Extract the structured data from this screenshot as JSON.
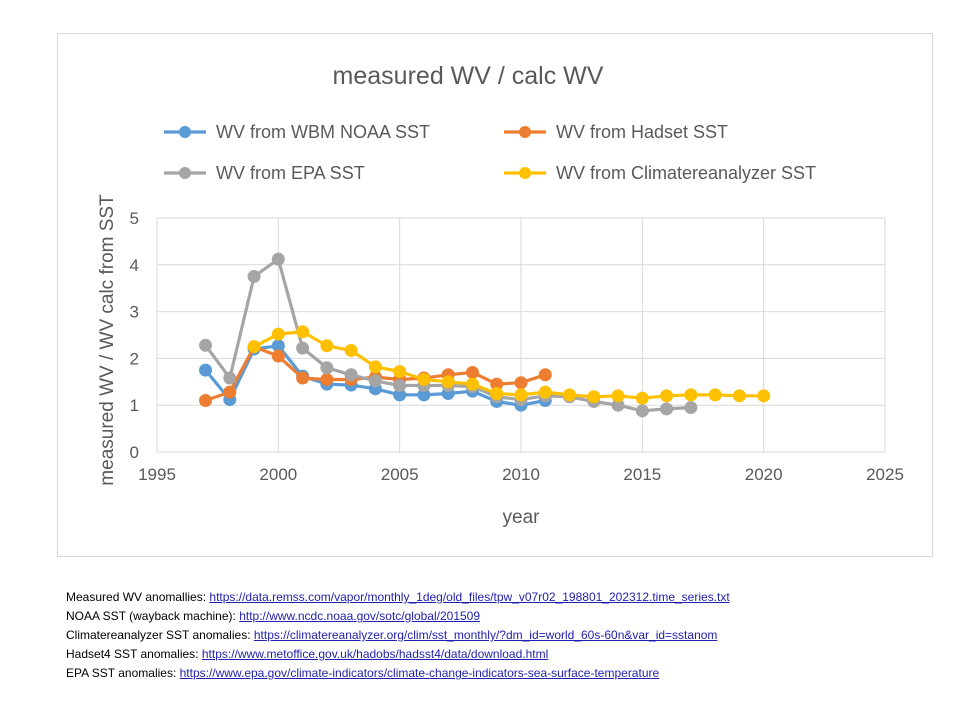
{
  "chart_data": {
    "type": "line",
    "title": "measured  WV / calc WV",
    "xlabel": "year",
    "ylabel": "measured WV / WV calc from SST",
    "xlim": [
      1995,
      2025
    ],
    "ylim": [
      0,
      5
    ],
    "xticks": [
      "1995",
      "2000",
      "2005",
      "2010",
      "2015",
      "2020",
      "2025"
    ],
    "yticks": [
      "0",
      "1",
      "2",
      "3",
      "4",
      "5"
    ],
    "grid": true,
    "legend_position": "top",
    "series": [
      {
        "name": "WV from WBM NOAA  SST",
        "color": "#5b9bd5",
        "x": [
          1997,
          1998,
          1999,
          2000,
          2001,
          2002,
          2003,
          2004,
          2005,
          2006,
          2007,
          2008,
          2009,
          2010,
          2011
        ],
        "y": [
          1.75,
          1.12,
          2.2,
          2.27,
          1.62,
          1.45,
          1.43,
          1.35,
          1.22,
          1.22,
          1.25,
          1.3,
          1.08,
          1.0,
          1.1
        ]
      },
      {
        "name": "WV from Hadset SST",
        "color": "#ed7d31",
        "x": [
          1997,
          1998,
          1999,
          2000,
          2001,
          2002,
          2003,
          2004,
          2005,
          2006,
          2007,
          2008,
          2009,
          2010,
          2011
        ],
        "y": [
          1.1,
          1.28,
          2.25,
          2.05,
          1.58,
          1.55,
          1.55,
          1.6,
          1.55,
          1.58,
          1.65,
          1.7,
          1.45,
          1.48,
          1.65
        ]
      },
      {
        "name": "WV from EPA SST",
        "color": "#a5a5a5",
        "x": [
          1997,
          1998,
          1999,
          2000,
          2001,
          2002,
          2003,
          2004,
          2005,
          2006,
          2007,
          2008,
          2009,
          2010,
          2011,
          2012,
          2013,
          2014,
          2015,
          2016,
          2017
        ],
        "y": [
          2.28,
          1.58,
          3.75,
          4.12,
          2.22,
          1.8,
          1.65,
          1.52,
          1.42,
          1.42,
          1.42,
          1.4,
          1.18,
          1.12,
          1.2,
          1.18,
          1.08,
          1.0,
          0.88,
          0.92,
          0.95
        ]
      },
      {
        "name": "WV from Climatereanalyzer SST",
        "color": "#ffc000",
        "x": [
          1999,
          2000,
          2001,
          2002,
          2003,
          2004,
          2005,
          2006,
          2007,
          2008,
          2009,
          2010,
          2011,
          2012,
          2013,
          2014,
          2015,
          2016,
          2017,
          2018,
          2019,
          2020
        ],
        "y": [
          2.25,
          2.52,
          2.57,
          2.27,
          2.17,
          1.82,
          1.72,
          1.55,
          1.5,
          1.45,
          1.25,
          1.22,
          1.28,
          1.22,
          1.18,
          1.2,
          1.15,
          1.2,
          1.22,
          1.22,
          1.2,
          1.2
        ]
      }
    ]
  },
  "sources": [
    {
      "label": "Measured WV anomallies: ",
      "link": "https://data.remss.com/vapor/monthly_1deg/old_files/tpw_v07r02_198801_202312.time_series.txt"
    },
    {
      "label": "NOAA SST (wayback machine): ",
      "link": "http://www.ncdc.noaa.gov/sotc/global/201509"
    },
    {
      "label": "Climatereanalyzer SST anomalies: ",
      "link": "https://climatereanalyzer.org/clim/sst_monthly/?dm_id=world_60s-60n&var_id=sstanom"
    },
    {
      "label": " Hadset4 SST anomalies: ",
      "link": "https://www.metoffice.gov.uk/hadobs/hadsst4/data/download.html"
    },
    {
      "label": "EPA SST anomalies: ",
      "link": "https://www.epa.gov/climate-indicators/climate-change-indicators-sea-surface-temperature"
    }
  ]
}
